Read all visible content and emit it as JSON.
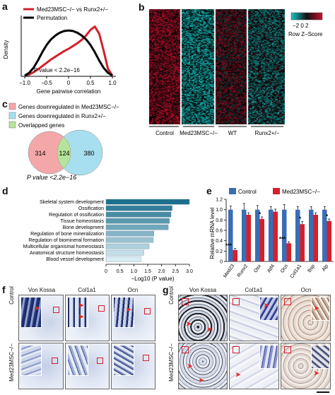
{
  "panels": {
    "a": {
      "label": "a",
      "legend": [
        "Med23MSC−/− vs Runx2+/−",
        "Permutation"
      ],
      "ylabel": "Density",
      "xlabel": "Gene pairwise correlation",
      "xticks": [
        "−1.0",
        "−0.5",
        "0",
        "0.5",
        "1.0"
      ],
      "annotation": "P value < 2.2e−16"
    },
    "b": {
      "label": "b",
      "key_ticks": "−2 0  2",
      "key_label": "Row Z–Score",
      "columns": [
        "Control",
        "Med23MSC−/−",
        "WT",
        "Runx2+/−"
      ]
    },
    "c": {
      "label": "c",
      "legend": [
        "Genes downregulated in Med23MSC−/−",
        "Genes downregulated in Runx2+/−",
        "Overlapped genes"
      ],
      "venn_left": "314",
      "venn_mid": "124",
      "venn_right": "380",
      "annotation": "P value <2.2e−16"
    },
    "d": {
      "label": "d",
      "xlabel": "−Log10 (P value)",
      "xticks": [
        "0",
        "0.5",
        "1.0",
        "1.5",
        "2.0",
        "2.5",
        "3.0"
      ]
    },
    "e": {
      "label": "e",
      "legend": [
        "Control",
        "Med23MSC−/−"
      ],
      "ylabel": "Relative mRNA level",
      "yticks": [
        "0",
        "0.2",
        "0.4",
        "0.6",
        "0.8",
        "1.0",
        "1.2"
      ]
    },
    "f": {
      "label": "f",
      "columns": [
        "Von Kossa",
        "Col1a1",
        "Ocn"
      ],
      "rows": [
        "Control",
        "Med23MSC−/−"
      ]
    },
    "g": {
      "label": "g",
      "columns": [
        "Von Kossa",
        "Col1a1",
        "Ocn"
      ],
      "rows": [
        "Control",
        "Med23MSC−/−"
      ]
    }
  },
  "colors": {
    "med23": "#d4202a",
    "permutation": "#000000",
    "control_bar": "#3a6db5",
    "venn_pink": "#f4a7a9",
    "venn_blue": "#a8dff0",
    "venn_green": "#b5e39b",
    "heat_red": "#c8102e",
    "heat_cyan": "#18c8c8",
    "bar_dark": "#1d6f8d",
    "bar_light": "#d8ecf3"
  },
  "chart_data": [
    {
      "id": "a",
      "type": "line",
      "x_range": [
        -1.0,
        1.0
      ],
      "series": [
        {
          "name": "Med23MSC−/− vs Runx2+/−",
          "x": [
            -1.0,
            -0.9,
            -0.8,
            -0.7,
            -0.6,
            -0.5,
            -0.4,
            -0.3,
            -0.2,
            -0.1,
            0.0,
            0.1,
            0.2,
            0.3,
            0.4,
            0.5,
            0.6,
            0.7,
            0.8,
            0.9,
            1.0
          ],
          "y": [
            0.0,
            0.02,
            0.06,
            0.11,
            0.17,
            0.23,
            0.29,
            0.34,
            0.39,
            0.44,
            0.48,
            0.53,
            0.58,
            0.64,
            0.72,
            0.82,
            0.88,
            0.75,
            0.45,
            0.12,
            0.0
          ]
        },
        {
          "name": "Permutation",
          "x": [
            -1.0,
            -0.9,
            -0.8,
            -0.7,
            -0.6,
            -0.5,
            -0.4,
            -0.3,
            -0.2,
            -0.1,
            0.0,
            0.1,
            0.2,
            0.3,
            0.4,
            0.5,
            0.6,
            0.7,
            0.8,
            0.9,
            1.0
          ],
          "y": [
            0.0,
            0.05,
            0.14,
            0.27,
            0.42,
            0.55,
            0.65,
            0.72,
            0.77,
            0.8,
            0.81,
            0.8,
            0.77,
            0.72,
            0.65,
            0.55,
            0.42,
            0.27,
            0.14,
            0.05,
            0.0
          ]
        }
      ],
      "xlabel": "Gene pairwise correlation",
      "ylabel": "Density",
      "annotation": "P value < 2.2e−16"
    },
    {
      "id": "b",
      "type": "heatmap",
      "columns": [
        "Control",
        "Med23MSC−/−",
        "WT",
        "Runx2+/−"
      ],
      "color_scale": {
        "ticks": [
          "−2",
          "0",
          "2"
        ],
        "label": "Row Z–Score"
      }
    },
    {
      "id": "d",
      "type": "bar",
      "orientation": "horizontal",
      "categories": [
        "Skeletal system development",
        "Ossification",
        "Regulation of ossification",
        "Tissue homeostasis",
        "Bone development",
        "Regulation of bone mineralization",
        "Regulation of biomineral formation",
        "Multicellular organismal homeostasis",
        "Anatomical structure homeostasis",
        "Blood vessel development"
      ],
      "values": [
        3.0,
        2.38,
        2.34,
        2.28,
        2.24,
        1.72,
        1.7,
        1.55,
        1.36,
        1.25
      ],
      "xlabel": "−Log10 (P value)",
      "xlim": [
        0,
        3.0
      ]
    },
    {
      "id": "e",
      "type": "bar",
      "categories": [
        "Med23",
        "Runx2",
        "Osx",
        "Atf4",
        "Ocn",
        "Col1a1",
        "Bsp",
        "Alp"
      ],
      "series": [
        {
          "name": "Control",
          "values": [
            1.0,
            1.0,
            1.0,
            1.0,
            1.0,
            1.0,
            1.0,
            1.0
          ],
          "errors": [
            0.07,
            0.12,
            0.08,
            0.06,
            0.1,
            0.06,
            0.06,
            0.06
          ]
        },
        {
          "name": "Med23MSC−/−",
          "values": [
            0.22,
            0.9,
            0.82,
            0.96,
            0.35,
            0.72,
            0.9,
            0.78
          ],
          "errors": [
            0.03,
            0.04,
            0.04,
            0.05,
            0.03,
            0.05,
            0.04,
            0.04
          ]
        }
      ],
      "significance": [
        "***",
        "",
        "*",
        "",
        "***",
        "*",
        "",
        "*"
      ],
      "ylabel": "Relative mRNA level",
      "ylim": [
        0,
        1.2
      ]
    }
  ]
}
